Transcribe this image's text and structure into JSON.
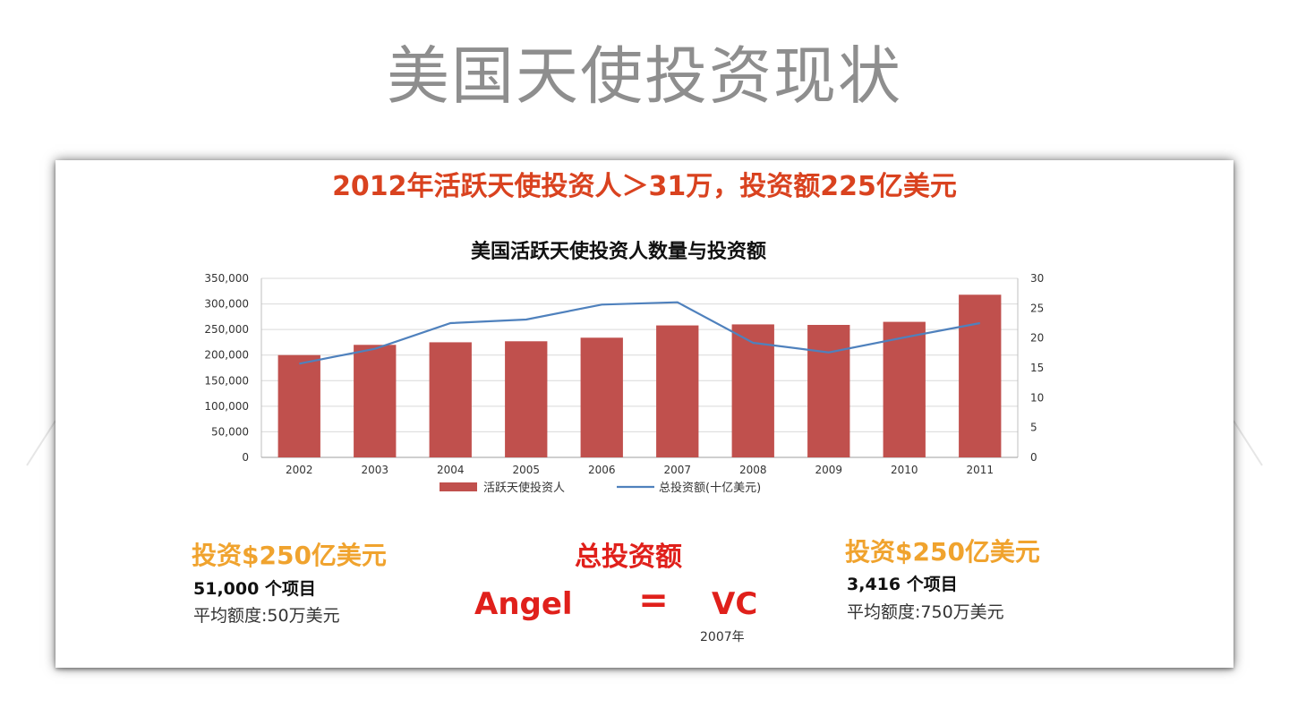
{
  "slide": {
    "title": "美国天使投资现状"
  },
  "panel": {
    "headline": "2012年活跃天使投资人＞31万，投资额225亿美元"
  },
  "chart_data": {
    "type": "bar",
    "title": "美国活跃天使投资人数量与投资额",
    "categories": [
      "2002",
      "2003",
      "2004",
      "2005",
      "2006",
      "2007",
      "2008",
      "2009",
      "2010",
      "2011"
    ],
    "series": [
      {
        "name": "活跃天使投资人",
        "type": "bar",
        "axis": "left",
        "color": "#c0504d",
        "values": [
          200000,
          220000,
          225000,
          227000,
          234000,
          258000,
          260000,
          259000,
          265000,
          318000
        ]
      },
      {
        "name": "总投资额(十亿美元)",
        "type": "line",
        "axis": "right",
        "color": "#4f81bd",
        "values": [
          15.7,
          18.2,
          22.5,
          23.1,
          25.6,
          26.0,
          19.2,
          17.6,
          20.1,
          22.5
        ]
      }
    ],
    "ylim": [
      0,
      350000
    ],
    "y2lim": [
      0,
      30
    ],
    "yticks": [
      "350,000",
      "300,000",
      "250,000",
      "200,000",
      "150,000",
      "100,000",
      "50,000",
      "0"
    ],
    "y2ticks": [
      "30",
      "25",
      "20",
      "15",
      "10",
      "5",
      "0"
    ],
    "grid": true,
    "legend": "bottom"
  },
  "stats": {
    "left": {
      "title": "投资$250亿美元",
      "count": "51,000 个项目",
      "avg": "平均额度:50万美元"
    },
    "center": {
      "title": "总投资额",
      "left_word": "Angel",
      "sign": "=",
      "right_word": "VC",
      "year": "2007年"
    },
    "right": {
      "title": "投资$250亿美元",
      "count": "3,416 个项目",
      "avg": "平均额度:750万美元"
    }
  }
}
